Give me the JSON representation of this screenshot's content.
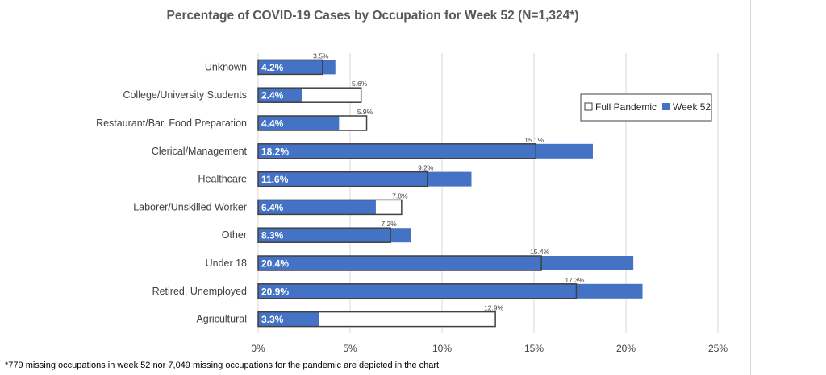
{
  "chart_data": {
    "type": "bar",
    "orientation": "horizontal",
    "title": "Percentage of COVID-19 Cases by Occupation for Week 52 (N=1,324*)",
    "categories": [
      "Unknown",
      "College/University Students",
      "Restaurant/Bar, Food Preparation",
      "Clerical/Management",
      "Healthcare",
      "Laborer/Unskilled Worker",
      "Other",
      "Under 18",
      "Retired, Unemployed",
      "Agricultural"
    ],
    "series": [
      {
        "name": "Full Pandemic",
        "values": [
          3.5,
          5.6,
          5.9,
          15.1,
          9.2,
          7.8,
          7.2,
          15.4,
          17.3,
          12.9
        ],
        "labels": [
          "3.5%",
          "5.6%",
          "5.9%",
          "15.1%",
          "9.2%",
          "7.8%",
          "7.2%",
          "15.4%",
          "17.3%",
          "12.9%"
        ],
        "fill": "#ffffff",
        "stroke": "#404040"
      },
      {
        "name": "Week 52",
        "values": [
          4.2,
          2.4,
          4.4,
          18.2,
          11.6,
          6.4,
          8.3,
          20.4,
          20.9,
          3.3
        ],
        "labels": [
          "4.2%",
          "2.4%",
          "4.4%",
          "18.2%",
          "11.6%",
          "6.4%",
          "8.3%",
          "20.4%",
          "20.9%",
          "3.3%"
        ],
        "fill": "#4472c4"
      }
    ],
    "xlim": [
      0,
      25
    ],
    "x_ticks": [
      0,
      5,
      10,
      15,
      20,
      25
    ],
    "x_tick_labels": [
      "0%",
      "5%",
      "10%",
      "15%",
      "20%",
      "25%"
    ],
    "grid": true,
    "legend": {
      "position": "right"
    },
    "footnote": "*779  missing occupations in week 52  nor 7,049 missing occupations for the pandemic are depicted in the chart"
  }
}
